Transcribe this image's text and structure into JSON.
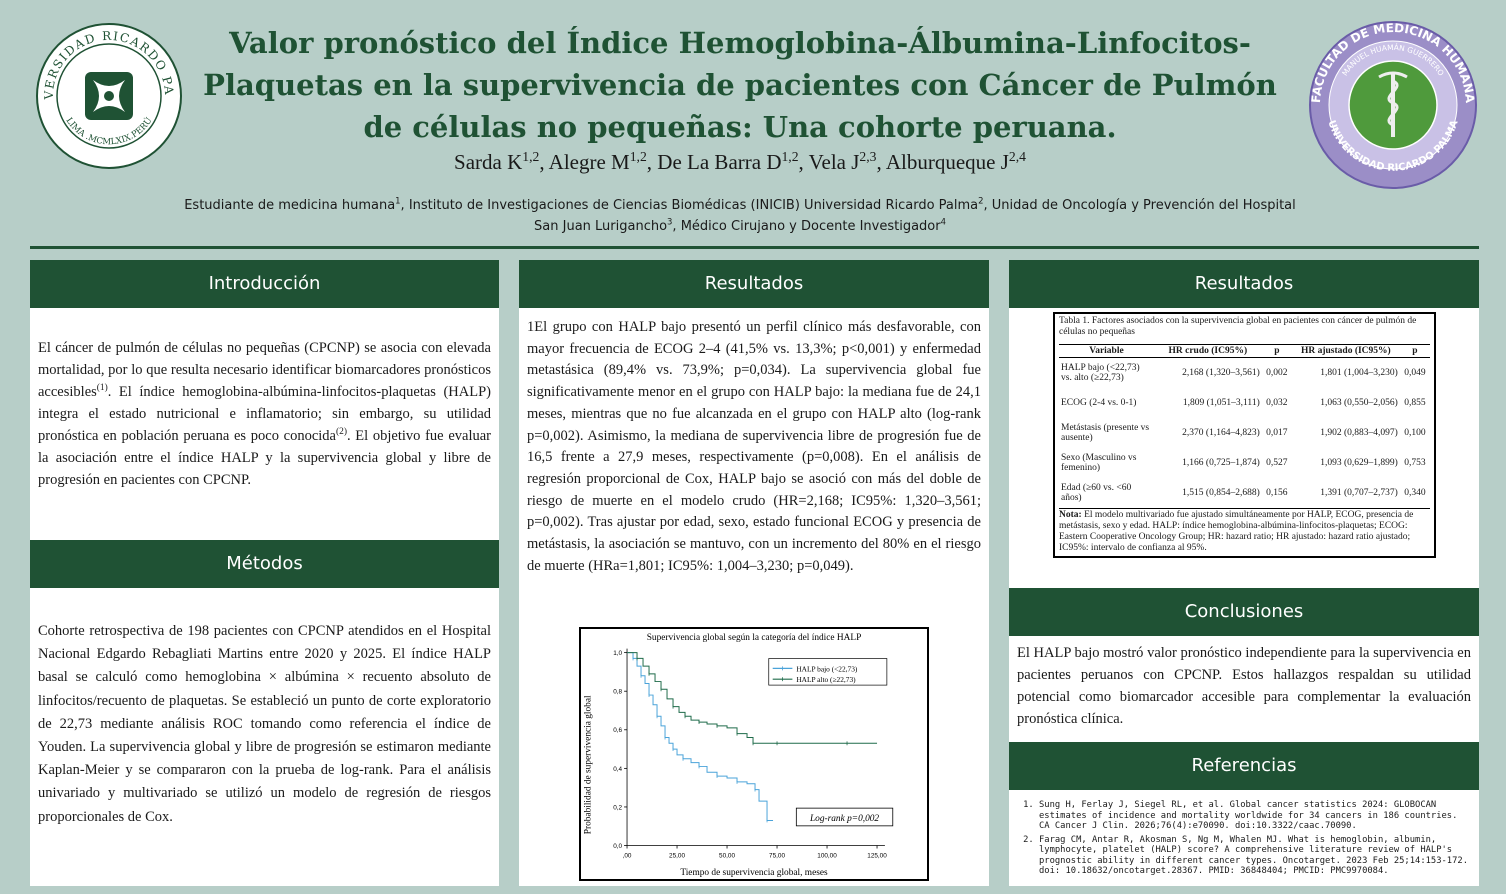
{
  "header": {
    "title": "Valor pronóstico del Índice Hemoglobina-Álbumina-Linfocitos-Plaquetas en la supervivencia de pacientes con Cáncer de Pulmón de células no pequeñas: Una cohorte peruana.",
    "authors": [
      {
        "name": "Sarda K",
        "sup": "1,2"
      },
      {
        "name": "Alegre M",
        "sup": "1,2"
      },
      {
        "name": "De La Barra D",
        "sup": "1,2"
      },
      {
        "name": "Vela J",
        "sup": "2,3"
      },
      {
        "name": "Alburqueque J",
        "sup": "2,4"
      }
    ],
    "affiliations": [
      {
        "text": "Estudiante de medicina humana",
        "sup": "1"
      },
      {
        "text": "Instituto de Investigaciones de Ciencias Biomédicas (INICIB) Universidad Ricardo Palma",
        "sup": "2"
      },
      {
        "text": "Unidad de Oncología y Prevención del Hospital San Juan Lurigancho",
        "sup": "3"
      },
      {
        "text": "Médico Cirujano y Docente Investigador",
        "sup": "4"
      }
    ],
    "logo_left": {
      "top": "UNIVERSIDAD RICARDO PALMA",
      "bottom": "LIMA .MCMLXIX.PERÚ"
    },
    "logo_right": {
      "top": "FACULTAD DE MEDICINA HUMANA",
      "middle": "MANUEL HUAMÁN GUERRERO",
      "bottom": "UNIVERSIDAD RICARDO PALMA"
    }
  },
  "intro": {
    "heading": "Introducción",
    "p1": "El cáncer de pulmón de células no pequeñas (CPCNP) se asocia con elevada mortalidad, por lo que resulta necesario identificar biomarcadores pronósticos accesibles",
    "p1_sup": "(1)",
    "p2": ". El índice hemoglobina-albúmina-linfocitos-plaquetas (HALP) integra el estado nutricional e inflamatorio; sin embargo, su utilidad pronóstica en población peruana es poco conocida",
    "p2_sup": "(2)",
    "p3": ". El objetivo fue evaluar la asociación entre el índice HALP y la supervivencia global y libre de progresión en pacientes con CPCNP."
  },
  "methods": {
    "heading": "Métodos",
    "text": "Cohorte retrospectiva de 198 pacientes con CPCNP atendidos en el Hospital Nacional Edgardo Rebagliati Martins entre 2020 y 2025. El índice HALP basal se calculó como hemoglobina × albúmina × recuento absoluto de linfocitos/recuento de plaquetas. Se estableció un punto de corte exploratorio de 22,73 mediante análisis ROC tomando como referencia el índice de Youden. La supervivencia global y libre de progresión se estimaron mediante Kaplan-Meier y se compararon con la prueba de log-rank. Para el análisis univariado y multivariado se utilizó un modelo de regresión de riesgos proporcionales de Cox."
  },
  "results1": {
    "heading": "Resultados",
    "text": "1El grupo con HALP bajo presentó un perfil clínico más desfavorable, con mayor frecuencia de ECOG 2–4 (41,5% vs. 13,3%; p<0,001) y enfermedad metastásica (89,4% vs. 73,9%; p=0,034). La supervivencia global fue significativamente menor en el grupo con HALP bajo: la mediana fue de 24,1 meses, mientras que no fue alcanzada en el grupo con HALP alto (log-rank p=0,002). Asimismo, la mediana de supervivencia libre de progresión fue de 16,5 frente a 27,9 meses, respectivamente (p=0,008). En el análisis de regresión proporcional de Cox, HALP bajo se asoció con más del doble de riesgo de muerte en el modelo crudo (HR=2,168; IC95%: 1,320–3,561; p=0,002). Tras ajustar por edad, sexo, estado funcional ECOG y presencia de metástasis, la asociación se mantuvo, con un incremento del 80% en el riesgo de muerte (HRa=1,801; IC95%: 1,004–3,230; p=0,049)."
  },
  "km_chart": {
    "title": "Supervivencia global según la categoría del índice HALP",
    "xlabel": "Tiempo de supervivencia global, meses",
    "ylabel": "Probabilidad de supervivencia global",
    "logrank": "Log-rank p=0,002"
  },
  "chart_data": {
    "type": "line",
    "title": "Supervivencia global según la categoría del índice HALP",
    "xlabel": "Tiempo de supervivencia global, meses",
    "ylabel": "Probabilidad de supervivencia global",
    "xlim": [
      0,
      125
    ],
    "ylim": [
      0,
      1.0
    ],
    "xticks": [
      ",00",
      "25,00",
      "50,00",
      "75,00",
      "100,00",
      "125,00"
    ],
    "xtick_values": [
      0,
      25,
      50,
      75,
      100,
      125
    ],
    "yticks": [
      "0,0",
      "0,2",
      "0,4",
      "0,6",
      "0,8",
      "1,0"
    ],
    "ytick_values": [
      0,
      0.2,
      0.4,
      0.6,
      0.8,
      1.0
    ],
    "legend_position": "top-right",
    "series": [
      {
        "name": "HALP bajo (<22,73)",
        "color": "#4aa3d9",
        "x": [
          0,
          3,
          5,
          7,
          9,
          11,
          13,
          15,
          17,
          19,
          21,
          23,
          25,
          28,
          32,
          36,
          40,
          45,
          50,
          55,
          60,
          64,
          66,
          70,
          73
        ],
        "y": [
          1.0,
          0.97,
          0.93,
          0.88,
          0.84,
          0.78,
          0.73,
          0.67,
          0.62,
          0.56,
          0.53,
          0.5,
          0.47,
          0.45,
          0.43,
          0.41,
          0.38,
          0.36,
          0.35,
          0.33,
          0.32,
          0.29,
          0.23,
          0.13,
          0.13
        ]
      },
      {
        "name": "HALP alto (≥22,73)",
        "color": "#1f6b4a",
        "x": [
          0,
          5,
          8,
          11,
          14,
          17,
          20,
          23,
          26,
          29,
          32,
          36,
          40,
          45,
          50,
          55,
          60,
          63,
          68,
          75,
          90,
          110,
          125
        ],
        "y": [
          1.0,
          0.97,
          0.93,
          0.89,
          0.85,
          0.81,
          0.76,
          0.72,
          0.69,
          0.67,
          0.65,
          0.64,
          0.63,
          0.62,
          0.61,
          0.58,
          0.56,
          0.53,
          0.53,
          0.53,
          0.53,
          0.53,
          0.53
        ]
      }
    ]
  },
  "results2": {
    "heading": "Resultados",
    "table_caption": "Tabla 1. Factores asociados con la supervivencia global en pacientes con cáncer de pulmón de células no pequeñas",
    "columns": [
      "Variable",
      "HR crudo (IC95%)",
      "p",
      "HR ajustado (IC95%)",
      "p"
    ],
    "rows": [
      [
        "HALP bajo (<22,73) vs. alto (≥22,73)",
        "2,168 (1,320–3,561)",
        "0,002",
        "1,801 (1,004–3,230)",
        "0,049"
      ],
      [
        "ECOG (2-4 vs. 0-1)",
        "1,809 (1,051–3,111)",
        "0,032",
        "1,063 (0,550–2,056)",
        "0,855"
      ],
      [
        "Metástasis (presente vs ausente)",
        "2,370 (1,164–4,823)",
        "0,017",
        "1,902 (0,883–4,097)",
        "0,100"
      ],
      [
        "Sexo (Masculino vs femenino)",
        "1,166 (0,725–1,874)",
        "0,527",
        "1,093 (0,629–1,899)",
        "0,753"
      ],
      [
        "Edad (≥60 vs. <60 años)",
        "1,515 (0,854–2,688)",
        "0,156",
        "1,391 (0,707–2,737)",
        "0,340"
      ]
    ],
    "note_label": "Nota:",
    "note": " El modelo multivariado fue ajustado simultáneamente por HALP, ECOG, presencia de metástasis, sexo y edad. HALP: índice hemoglobina-albúmina-linfocitos-plaquetas; ECOG: Eastern Cooperative Oncology Group; HR: hazard ratio; HR ajustado: hazard ratio ajustado; IC95%: intervalo de confianza al 95%."
  },
  "conclusions": {
    "heading": "Conclusiones",
    "text": "El HALP bajo mostró valor pronóstico independiente para la supervivencia en pacientes peruanos con CPCNP. Estos hallazgos respaldan su utilidad potencial como biomarcador accesible para complementar la evaluación pronóstica clínica."
  },
  "references": {
    "heading": "Referencias",
    "items": [
      "Sung H, Ferlay J, Siegel RL, et al. Global cancer statistics 2024: GLOBOCAN estimates of incidence and mortality worldwide for 34 cancers in 186 countries. CA Cancer J Clin. 2026;76(4):e70090. doi:10.3322/caac.70090.",
      "Farag CM, Antar R, Akosman S, Ng M, Whalen MJ. What is hemoglobin, albumin, lymphocyte, platelet (HALP) score? A comprehensive literature review of HALP's prognostic ability in different cancer types. Oncotarget. 2023 Feb 25;14:153-172. doi: 10.18632/oncotarget.28367. PMID: 36848404; PMCID: PMC9970084."
    ]
  },
  "colors": {
    "background": "#b7cec8",
    "heading_bg": "#1f5234",
    "title": "#1f5234",
    "logo_right_ring": "#9b8ec7"
  }
}
